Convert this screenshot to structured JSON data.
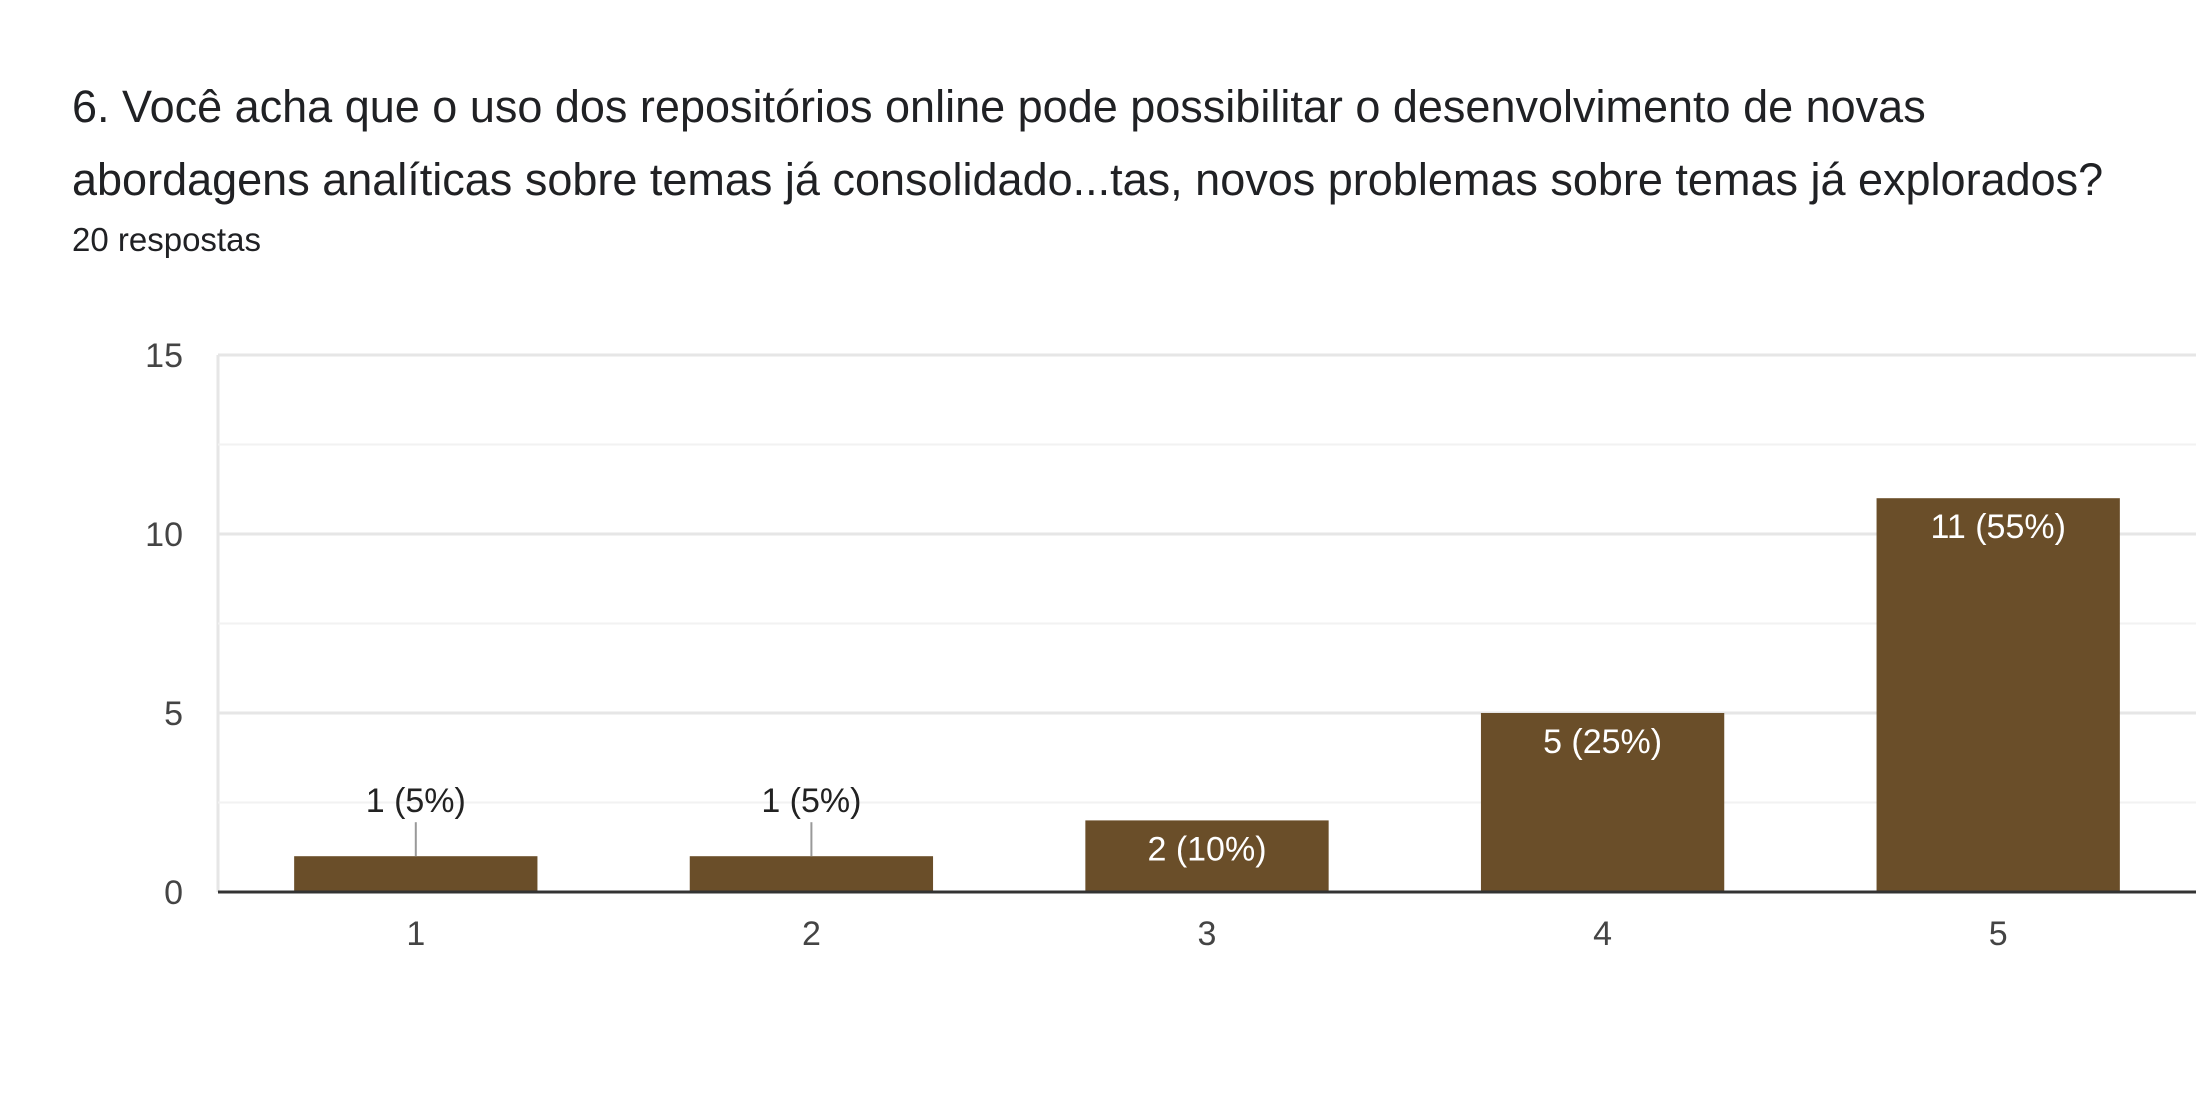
{
  "question": {
    "title": "6. Você acha que o uso dos repositórios online pode possibilitar o desenvolvimento de novas abordagens analíticas sobre temas já consolidado...tas, novos problemas sobre temas já explorados?",
    "responses": "20 respostas"
  },
  "colors": {
    "bar": "#6a4e29",
    "inside_label": "#ffffff",
    "outside_label": "#222222",
    "gridline_major": "#e6e6e6",
    "gridline_minor": "#f2f2f2",
    "baseline": "#333333",
    "leader": "#999999"
  },
  "chart_data": {
    "type": "bar",
    "categories": [
      "1",
      "2",
      "3",
      "4",
      "5"
    ],
    "values": [
      1,
      1,
      2,
      5,
      11
    ],
    "data_labels": [
      "1 (5%)",
      "1 (5%)",
      "2 (10%)",
      "5 (25%)",
      "11 (55%)"
    ],
    "ylim": [
      0,
      15
    ],
    "yticks": [
      0,
      5,
      10,
      15
    ],
    "minor_gridlines": [
      2.5,
      7.5,
      12.5
    ],
    "xlabel": "",
    "ylabel": "",
    "grid": true,
    "legend": "none"
  }
}
